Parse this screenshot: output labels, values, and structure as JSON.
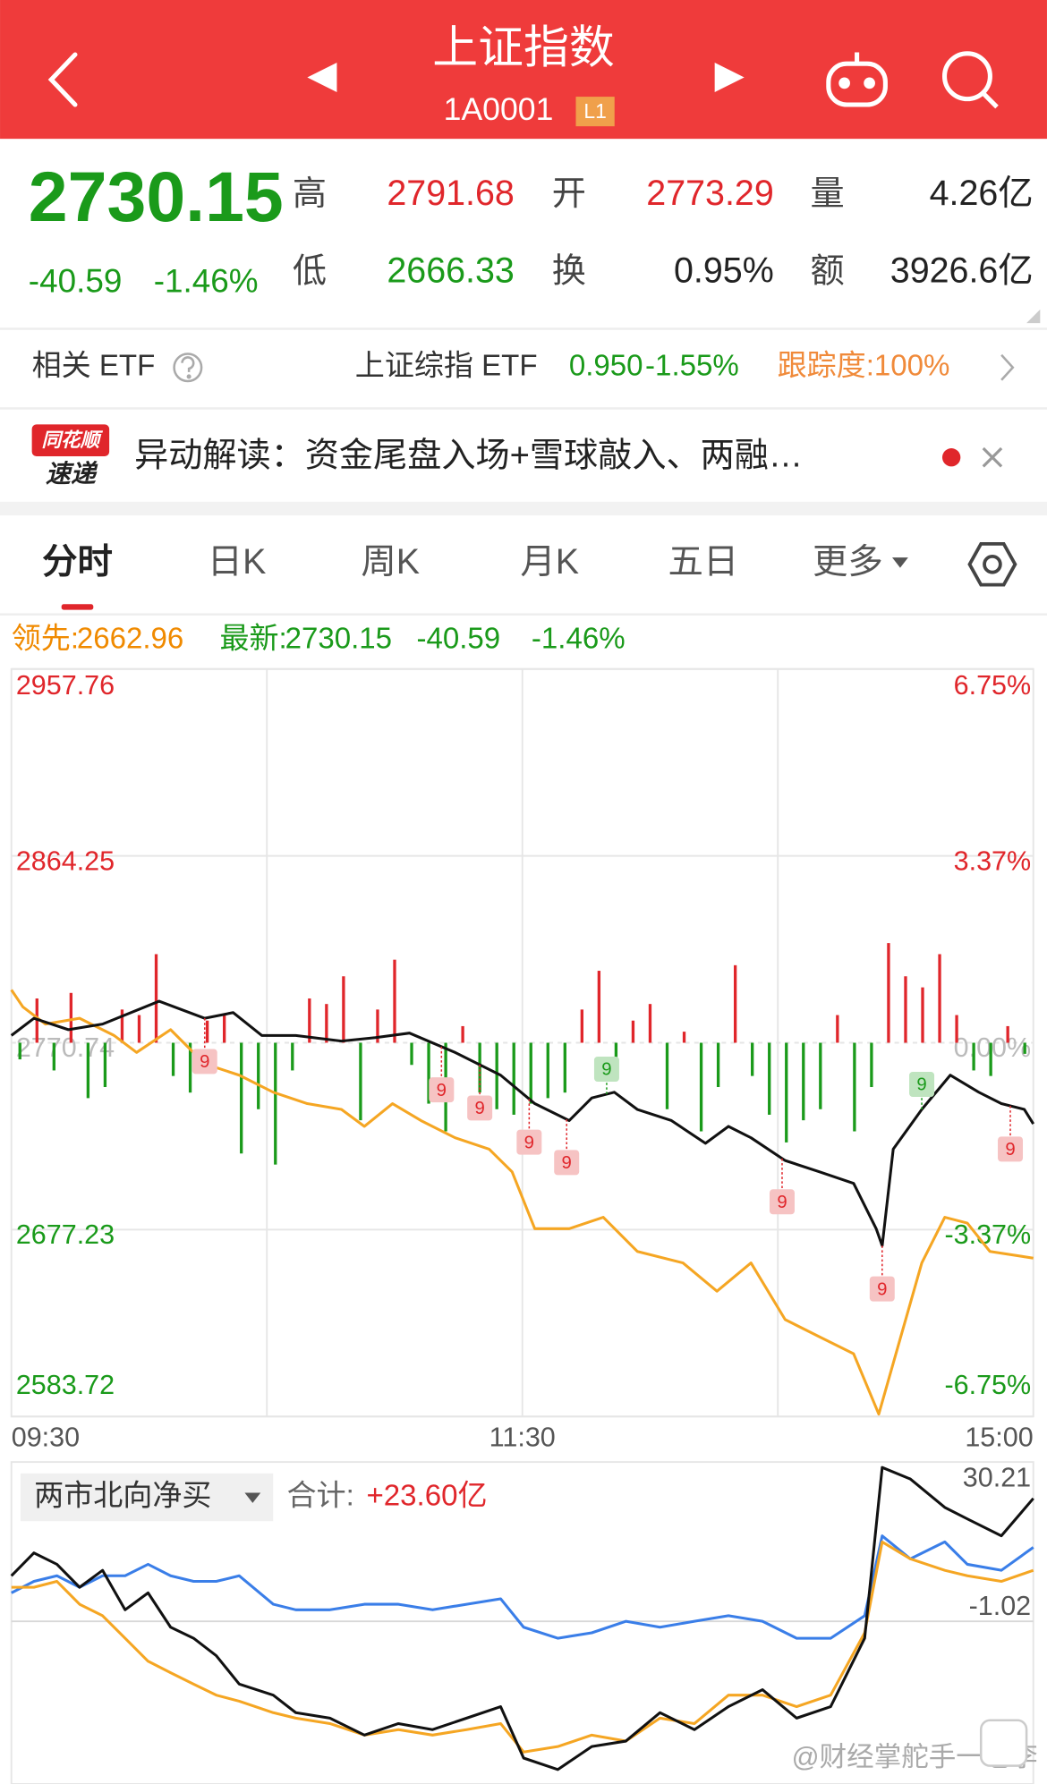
{
  "header": {
    "title": "上证指数",
    "code": "1A0001",
    "badge": "L1"
  },
  "quote": {
    "price": "2730.15",
    "change": "-40.59",
    "pct": "-1.46%",
    "fields": [
      {
        "label": "高",
        "value": "2791.68",
        "color": "#e0262b"
      },
      {
        "label": "开",
        "value": "2773.29",
        "color": "#e0262b"
      },
      {
        "label": "量",
        "value": "4.26亿",
        "color": "#222222"
      },
      {
        "label": "低",
        "value": "2666.33",
        "color": "#1a9a1a"
      },
      {
        "label": "换",
        "value": "0.95%",
        "color": "#222222"
      },
      {
        "label": "额",
        "value": "3926.6亿",
        "color": "#222222"
      }
    ]
  },
  "etf": {
    "label": "相关 ETF",
    "name": "上证综指 ETF",
    "price": "0.950",
    "pct": "-1.55%",
    "tracking": "跟踪度:100%"
  },
  "news": {
    "brand": "同花顺",
    "sub": "速递",
    "text": "异动解读：资金尾盘入场+雪球敲入、两融…"
  },
  "tabs": {
    "items": [
      "分时",
      "日K",
      "周K",
      "月K",
      "五日",
      "更多"
    ],
    "active": 0
  },
  "legend": [
    {
      "label": "领先:",
      "value": "2662.96",
      "color": "#f08a00"
    },
    {
      "label": "最新:",
      "value": "2730.15",
      "extra": [
        "-40.59",
        "-1.46%"
      ],
      "color": "#1a9a1a"
    }
  ],
  "chart_data": [
    {
      "type": "line",
      "xlim": [
        0,
        240
      ],
      "xticks": [
        {
          "value": 0,
          "label": "09:30"
        },
        {
          "value": 120,
          "label": "11:30"
        },
        {
          "value": 240,
          "label": "15:00"
        }
      ],
      "xgrid": [
        60,
        120,
        180
      ],
      "ylim": [
        2583.72,
        2957.76
      ],
      "yticks": [
        2957.76,
        2864.25,
        2770.74,
        2677.23,
        2583.72
      ],
      "y2lim": [
        -6.75,
        6.75
      ],
      "y2ticks": [
        {
          "value": 6.75,
          "label": "6.75%"
        },
        {
          "value": 3.37,
          "label": "3.37%"
        },
        {
          "value": 0,
          "label": "0.00%"
        },
        {
          "value": -3.37,
          "label": "-3.37%"
        },
        {
          "value": -6.75,
          "label": "-6.75%"
        }
      ],
      "tick_colors": [
        "#e0262b",
        "#e0262b",
        "#bbbbbb",
        "#1a9a1a",
        "#1a9a1a"
      ],
      "grid": true,
      "series": [
        {
          "color": "#f5a623",
          "x": [
            0,
            2.7,
            8.0,
            16.0,
            24.1,
            29.4,
            37.4,
            45.4,
            53.5,
            61.5,
            69.5,
            77.5,
            82.9,
            89.5,
            96.2,
            104.2,
            112.2,
            117.6,
            122.9,
            131.0,
            139.0,
            147.0,
            157.7,
            165.7,
            173.7,
            181.7,
            189.8,
            197.8,
            203.7,
            208.5,
            213.8,
            219.2,
            224.5,
            229.8,
            240
          ],
          "values": [
            2797.2,
            2788.7,
            2780.1,
            2783.0,
            2774.4,
            2765.9,
            2777.3,
            2760.2,
            2754.5,
            2746.0,
            2740.3,
            2737.4,
            2728.9,
            2740.3,
            2731.8,
            2723.2,
            2717.5,
            2706.1,
            2677.7,
            2677.7,
            2683.4,
            2666.3,
            2660.6,
            2646.4,
            2660.6,
            2632.2,
            2623.6,
            2615.1,
            2584.9,
            2620.8,
            2660.6,
            2683.4,
            2680.5,
            2666.3,
            2662.96
          ]
        },
        {
          "color": "#111111",
          "x": [
            0,
            5.3,
            13.4,
            21.4,
            34.7,
            45.4,
            52.1,
            58.8,
            66.8,
            77.5,
            85.5,
            93.5,
            104.2,
            114.9,
            122.9,
            131.0,
            136.3,
            141.6,
            147.0,
            155.0,
            163.0,
            168.4,
            173.7,
            181.7,
            189.8,
            197.8,
            203.1,
            204.5,
            207.1,
            213.8,
            220.5,
            227.2,
            232.5,
            237.9,
            240
          ],
          "values": [
            2774.4,
            2783.0,
            2777.3,
            2780.1,
            2791.5,
            2783.0,
            2785.8,
            2774.4,
            2774.4,
            2771.6,
            2773.3,
            2775.6,
            2765.9,
            2754.5,
            2740.3,
            2731.8,
            2743.1,
            2746.0,
            2737.4,
            2731.8,
            2720.4,
            2728.9,
            2723.2,
            2711.8,
            2706.1,
            2700.4,
            2677.7,
            2669.2,
            2717.5,
            2737.4,
            2754.5,
            2746.0,
            2740.3,
            2737.4,
            2730.15
          ]
        }
      ],
      "bars": {
        "axis": "y2",
        "up_color": "#e0262b",
        "down_color": "#1a9a1a",
        "x": [
          2,
          6,
          10,
          14,
          18,
          22,
          26,
          30,
          34,
          38,
          42,
          46,
          50,
          54,
          58,
          62,
          66,
          70,
          74,
          78,
          82,
          86,
          90,
          94,
          98,
          102,
          106,
          110,
          114,
          118,
          122,
          126,
          130,
          134,
          138,
          142,
          146,
          150,
          154,
          158,
          162,
          166,
          170,
          174,
          178,
          182,
          186,
          190,
          194,
          198,
          202,
          206,
          210,
          214,
          218,
          222,
          226,
          230,
          234,
          238
        ],
        "values": [
          -0.3,
          0.8,
          -0.5,
          0.9,
          -1.0,
          -0.8,
          0.6,
          0.5,
          1.6,
          -0.6,
          -0.9,
          0.4,
          0.5,
          -2.0,
          -1.2,
          -2.2,
          -0.5,
          0.8,
          0.7,
          1.2,
          -1.4,
          0.6,
          1.5,
          -0.4,
          -1.1,
          -1.6,
          0.3,
          -0.9,
          -1.2,
          -1.3,
          -1.1,
          -1.0,
          -0.9,
          0.6,
          1.3,
          -0.6,
          0.4,
          0.7,
          -1.2,
          0.2,
          -1.6,
          -0.8,
          1.4,
          -0.6,
          -1.3,
          -1.8,
          -1.4,
          -1.2,
          0.5,
          -1.6,
          -0.8,
          1.8,
          1.2,
          1.0,
          1.6,
          0.5,
          -0.5,
          -0.6,
          0.3,
          -0.2
        ]
      },
      "signals": [
        {
          "x": 45.4,
          "label": "9",
          "kind": "sell"
        },
        {
          "x": 101,
          "label": "9",
          "kind": "sell"
        },
        {
          "x": 110,
          "label": "9",
          "kind": "sell"
        },
        {
          "x": 121.6,
          "label": "9",
          "kind": "sell"
        },
        {
          "x": 130.4,
          "label": "9",
          "kind": "sell"
        },
        {
          "x": 139.8,
          "label": "9",
          "kind": "buy"
        },
        {
          "x": 181,
          "label": "9",
          "kind": "sell"
        },
        {
          "x": 204.5,
          "label": "9",
          "kind": "sell"
        },
        {
          "x": 213.8,
          "label": "9",
          "kind": "buy"
        },
        {
          "x": 234.6,
          "label": "9",
          "kind": "sell"
        }
      ],
      "signal_colors": {
        "sell": "#e0262b",
        "buy": "#1a9a1a"
      }
    },
    {
      "type": "line",
      "selector": "两市北向净买",
      "total_label": "合计:",
      "total": "+23.60亿",
      "xlim": [
        0,
        240
      ],
      "ylim": [
        -33.6,
        30.9
      ],
      "yticks": [
        30.21,
        -1.02
      ],
      "x": [
        0,
        5.3,
        10.7,
        16.0,
        21.4,
        26.7,
        32.1,
        37.4,
        42.8,
        48.1,
        53.5,
        61.5,
        66.8,
        74.8,
        82.9,
        90.9,
        98.9,
        106.9,
        114.9,
        120.3,
        128.3,
        136.3,
        144.3,
        152.3,
        160.4,
        168.4,
        176.4,
        184.4,
        192.4,
        200.4,
        204.5,
        211.1,
        219.2,
        224.5,
        232.5,
        240
      ],
      "series": [
        {
          "color": "#3a7ee8",
          "values": [
            4.7,
            7.0,
            8.1,
            5.8,
            8.1,
            8.1,
            10.4,
            8.1,
            7.0,
            7.0,
            8.1,
            2.4,
            1.3,
            1.3,
            2.4,
            2.4,
            1.3,
            2.4,
            3.5,
            -2.2,
            -4.4,
            -3.3,
            -1.0,
            -2.2,
            -1.0,
            0.1,
            -1.0,
            -4.4,
            -4.4,
            0.1,
            16.1,
            11.5,
            14.9,
            10.4,
            9.2,
            13.8
          ]
        },
        {
          "color": "#f5a623",
          "values": [
            5.8,
            5.8,
            7.0,
            2.4,
            0.1,
            -4.4,
            -9.0,
            -11.3,
            -13.6,
            -15.8,
            -17.0,
            -19.3,
            -20.4,
            -21.5,
            -23.8,
            -22.7,
            -23.8,
            -22.7,
            -21.5,
            -27.2,
            -26.1,
            -23.8,
            -25.0,
            -20.4,
            -21.5,
            -15.8,
            -15.8,
            -18.1,
            -15.8,
            -3.3,
            14.9,
            11.5,
            9.2,
            8.1,
            7.0,
            9.2
          ]
        },
        {
          "color": "#111111",
          "values": [
            8.1,
            12.7,
            10.4,
            5.8,
            9.2,
            1.3,
            4.7,
            -2.2,
            -4.4,
            -7.9,
            -13.6,
            -15.8,
            -19.3,
            -20.4,
            -23.8,
            -21.5,
            -22.7,
            -20.4,
            -18.1,
            -28.4,
            -30.7,
            -26.1,
            -25.0,
            -19.3,
            -22.7,
            -18.1,
            -14.7,
            -20.4,
            -18.1,
            -4.4,
            29.8,
            27.5,
            21.8,
            19.5,
            16.1,
            23.6
          ]
        }
      ]
    }
  ],
  "watermark": "@财经掌舵手一老李"
}
